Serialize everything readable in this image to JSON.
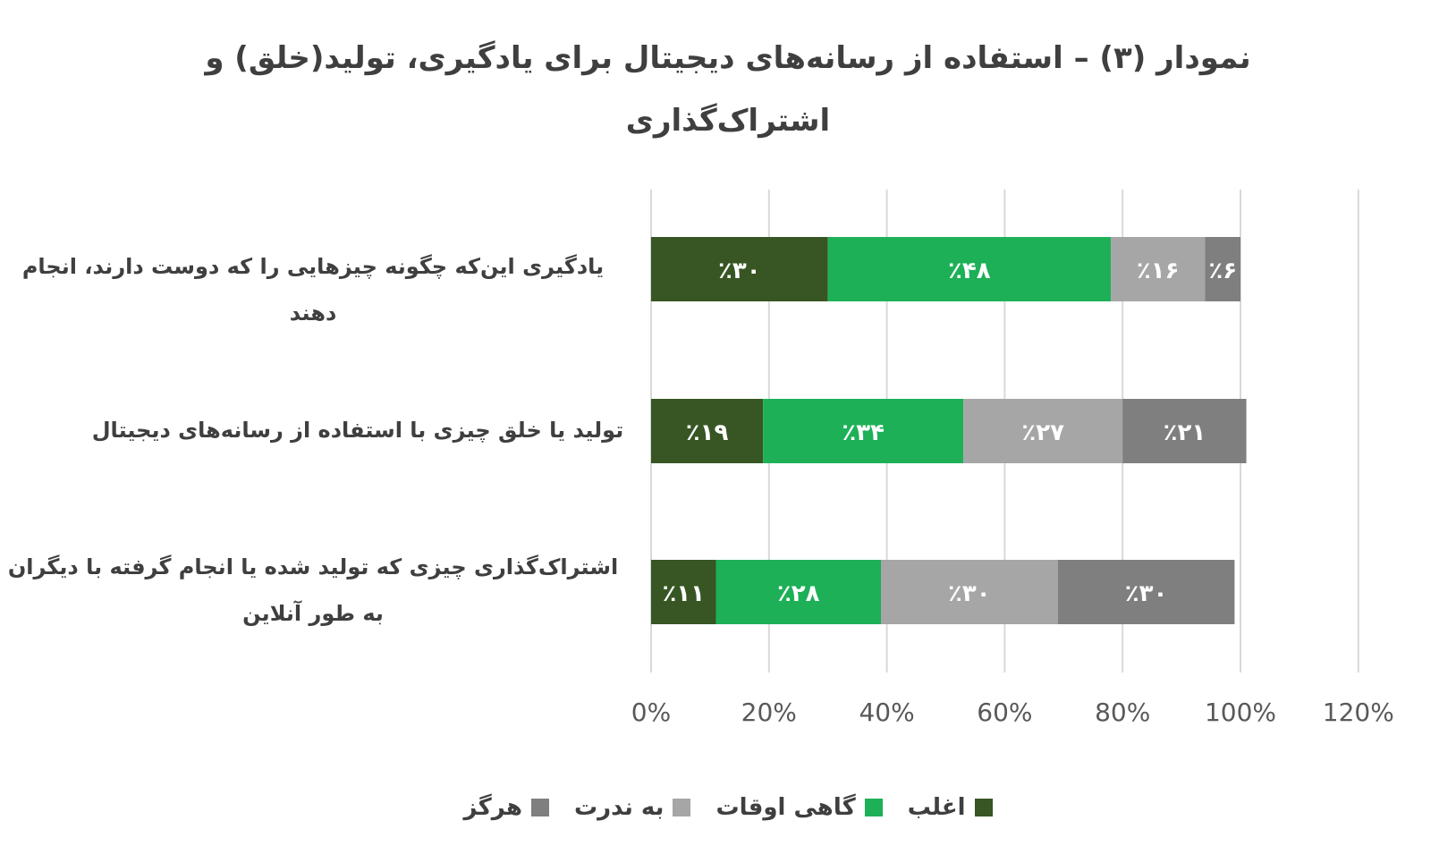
{
  "chart_data": {
    "type": "bar",
    "orientation": "horizontal",
    "stacked": true,
    "title_lines": [
      "نمودار (۳) – استفاده از رسانه‌های دیجیتال برای یادگیری، تولید(خلق) و",
      "اشتراک‌گذاری"
    ],
    "categories": [
      "یادگیری این‌که چگونه چیزهایی را که دوست دارند، انجام دهند",
      "تولید یا خلق چیزی  با استفاده از رسانه‌های دیجیتال",
      "اشتراک‌گذاری چیزی که تولید شده یا انجام گرفته با دیگران به طور آنلاین"
    ],
    "series": [
      {
        "name": "اغلب",
        "color": "#375623",
        "text_color": "#ffffff",
        "values": [
          30,
          19,
          11
        ],
        "labels": [
          "٪۳۰",
          "٪۱۹",
          "٪۱۱"
        ]
      },
      {
        "name": "گاهی اوقات",
        "color": "#1db057",
        "text_color": "#ffffff",
        "values": [
          48,
          34,
          28
        ],
        "labels": [
          "٪۴۸",
          "٪۳۴",
          "٪۲۸"
        ]
      },
      {
        "name": "به ندرت",
        "color": "#a6a6a6",
        "text_color": "#ffffff",
        "values": [
          16,
          27,
          30
        ],
        "labels": [
          "٪۱۶",
          "٪۲۷",
          "٪۳۰"
        ]
      },
      {
        "name": "هرگز",
        "color": "#7f7f7f",
        "text_color": "#ffffff",
        "values": [
          6,
          21,
          30
        ],
        "labels": [
          "٪۶",
          "٪۲۱",
          "٪۳۰"
        ]
      }
    ],
    "xlim": [
      0,
      120
    ],
    "xticks": [
      0,
      20,
      40,
      60,
      80,
      100,
      120
    ],
    "xtick_labels": [
      "0%",
      "20%",
      "40%",
      "60%",
      "80%",
      "100%",
      "120%"
    ],
    "grid": true,
    "legend_position": "bottom"
  }
}
